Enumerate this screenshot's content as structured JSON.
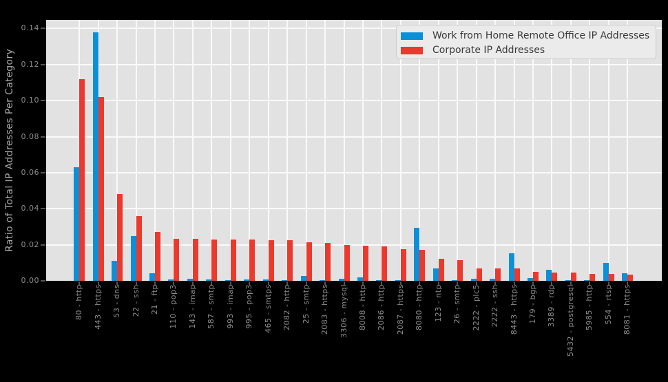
{
  "figure": {
    "background_color": "#000000",
    "plot_background_color": "#e2e2e2",
    "gridline_color": "#fafafa",
    "tick_color": "#555555",
    "tick_label_color": "#8d8d8d",
    "axis_title_color": "#a8a8a8"
  },
  "y_axis": {
    "title": "Ratio of Total IP Addresses Per Category",
    "tick_labels": [
      "0.00",
      "0.02",
      "0.04",
      "0.06",
      "0.08",
      "0.10",
      "0.12",
      "0.14"
    ]
  },
  "legend": {
    "background_color": "#ebebeb",
    "border_color": "#cdcdcd"
  },
  "chart_data": {
    "type": "bar",
    "title": "",
    "xlabel": "",
    "ylabel": "Ratio of Total IP Addresses Per Category",
    "ylim": [
      0,
      0.1448
    ],
    "yticks": [
      0.0,
      0.02,
      0.04,
      0.06,
      0.08,
      0.1,
      0.12,
      0.14
    ],
    "grid": true,
    "legend_position": "upper right",
    "categories": [
      "80 - http",
      "443 - https",
      "53 - dns",
      "22 - ssh",
      "21 - ftp",
      "110 - pop3",
      "143 - imap",
      "587 - smtp",
      "993 - imap",
      "995 - pop3",
      "465 - smtps",
      "2082 - http",
      "25 - smtp",
      "2083 - https",
      "3306 - mysql",
      "8008 - http",
      "2086 - http",
      "2087 - https",
      "8080 - http",
      "123 - ntp",
      "26 - smtp",
      "2222 - plc5",
      "2222 - ssh",
      "8443 - https",
      "179 - bgp",
      "3389 - rdp",
      "5432 - postgresql",
      "5985 - http",
      "554 - rtsp",
      "8081 - https"
    ],
    "series": [
      {
        "name": "Work from Home Remote Office IP Addresses",
        "color": "#0b90d8",
        "values": [
          0.063,
          0.138,
          0.011,
          0.0247,
          0.0043,
          0.0006,
          0.0011,
          0.0009,
          0.0004,
          0.0006,
          0.0008,
          0.0002,
          0.0027,
          0.0002,
          0.001,
          0.002,
          0.0002,
          0.0002,
          0.0294,
          0.007,
          0.0002,
          0.0011,
          0.0011,
          0.0152,
          0.0014,
          0.0061,
          0.0001,
          0.0004,
          0.01,
          0.0041
        ]
      },
      {
        "name": "Corporate IP Addresses",
        "color": "#ec392d",
        "values": [
          0.112,
          0.102,
          0.048,
          0.036,
          0.027,
          0.0234,
          0.0234,
          0.0228,
          0.0229,
          0.0229,
          0.0225,
          0.0225,
          0.0213,
          0.021,
          0.0197,
          0.0196,
          0.0192,
          0.0177,
          0.0173,
          0.0122,
          0.0113,
          0.0069,
          0.007,
          0.0069,
          0.005,
          0.0047,
          0.0047,
          0.0038,
          0.0038,
          0.0036
        ]
      }
    ]
  }
}
